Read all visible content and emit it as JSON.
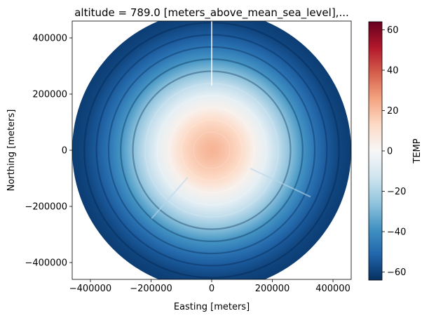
{
  "chart_data": {
    "type": "heatmap",
    "title": "altitude = 789.0 [meters_above_mean_sea_level],...",
    "xlabel": "Easting [meters]",
    "ylabel": "Northing [meters]",
    "xlim": [
      -460000,
      460000
    ],
    "ylim": [
      -460000,
      460000
    ],
    "x_ticks": [
      -400000,
      -200000,
      0,
      200000,
      400000
    ],
    "y_ticks": [
      -400000,
      -200000,
      0,
      200000,
      400000
    ],
    "x_tick_labels": [
      "−400000",
      "−200000",
      "0",
      "200000",
      "400000"
    ],
    "y_tick_labels": [
      "−400000",
      "−200000",
      "0",
      "200000",
      "400000"
    ],
    "grid": false,
    "domain_radius": 460000,
    "radial_profile": {
      "range_m": [
        0,
        20000,
        60000,
        100000,
        140000,
        180000,
        220000,
        260000,
        300000,
        340000,
        380000,
        420000,
        460000
      ],
      "temp": [
        22,
        21,
        17,
        12,
        3,
        -6,
        -16,
        -27,
        -38,
        -47,
        -54,
        -59,
        -61
      ]
    },
    "colorbar": {
      "label": "TEMP",
      "min": -64,
      "max": 64,
      "ticks": [
        -60,
        -40,
        -20,
        0,
        20,
        40,
        60
      ],
      "tick_labels": [
        "−60",
        "−40",
        "−20",
        "0",
        "20",
        "40",
        "60"
      ],
      "colormap": "RdBu_r",
      "stops": [
        "#053061",
        "#2166ac",
        "#4393c3",
        "#92c5de",
        "#d1e5f0",
        "#f7f7f7",
        "#fddbc7",
        "#f4a582",
        "#d6604d",
        "#b2182b",
        "#67001f"
      ]
    }
  }
}
